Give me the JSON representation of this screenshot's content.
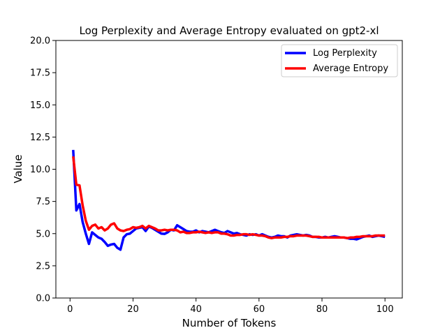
{
  "chart_data": {
    "type": "line",
    "title": "Log Perplexity and Average Entropy evaluated on gpt2-xl",
    "xlabel": "Number of Tokens",
    "ylabel": "Value",
    "xlim": [
      -4.5,
      105.5
    ],
    "ylim": [
      0,
      20
    ],
    "xticks": [
      0,
      20,
      40,
      60,
      80,
      100
    ],
    "yticks": [
      0.0,
      2.5,
      5.0,
      7.5,
      10.0,
      12.5,
      15.0,
      17.5,
      20.0
    ],
    "xtick_labels": [
      "0",
      "20",
      "40",
      "60",
      "80",
      "100"
    ],
    "ytick_labels": [
      "0.0",
      "2.5",
      "5.0",
      "7.5",
      "10.0",
      "12.5",
      "15.0",
      "17.5",
      "20.0"
    ],
    "grid": false,
    "legend_position": "top-right",
    "series": [
      {
        "name": "Log Perplexity",
        "color": "#0000ff",
        "x": [
          1,
          2,
          3,
          4,
          5,
          6,
          7,
          8,
          9,
          10,
          11,
          12,
          13,
          14,
          15,
          16,
          17,
          18,
          19,
          20,
          21,
          22,
          23,
          24,
          25,
          26,
          27,
          28,
          29,
          30,
          31,
          32,
          33,
          34,
          35,
          36,
          37,
          38,
          39,
          40,
          41,
          42,
          43,
          44,
          45,
          46,
          47,
          48,
          49,
          50,
          51,
          52,
          53,
          54,
          55,
          56,
          57,
          58,
          59,
          60,
          61,
          62,
          63,
          64,
          65,
          66,
          67,
          68,
          69,
          70,
          71,
          72,
          73,
          74,
          75,
          76,
          77,
          78,
          79,
          80,
          81,
          82,
          83,
          84,
          85,
          86,
          87,
          88,
          89,
          90,
          91,
          92,
          93,
          94,
          95,
          96,
          97,
          98,
          99,
          100
        ],
        "y": [
          11.5,
          6.8,
          7.3,
          5.9,
          5.0,
          4.2,
          5.1,
          4.9,
          4.7,
          4.6,
          4.35,
          4.05,
          4.15,
          4.2,
          3.9,
          3.75,
          4.7,
          4.95,
          5.0,
          5.2,
          5.4,
          5.45,
          5.5,
          5.2,
          5.55,
          5.45,
          5.3,
          5.15,
          5.0,
          4.98,
          5.1,
          5.3,
          5.25,
          5.65,
          5.5,
          5.35,
          5.2,
          5.15,
          5.15,
          5.25,
          5.1,
          5.2,
          5.15,
          5.1,
          5.2,
          5.3,
          5.2,
          5.1,
          5.05,
          5.2,
          5.1,
          5.0,
          5.05,
          4.95,
          4.9,
          4.85,
          4.95,
          4.9,
          4.95,
          4.85,
          4.95,
          4.85,
          4.75,
          4.7,
          4.75,
          4.85,
          4.8,
          4.8,
          4.7,
          4.85,
          4.9,
          4.95,
          4.9,
          4.85,
          4.9,
          4.85,
          4.75,
          4.75,
          4.7,
          4.7,
          4.75,
          4.7,
          4.75,
          4.8,
          4.75,
          4.7,
          4.7,
          4.65,
          4.6,
          4.6,
          4.55,
          4.65,
          4.75,
          4.8,
          4.85,
          4.75,
          4.8,
          4.85,
          4.8,
          4.75
        ]
      },
      {
        "name": "Average Entropy",
        "color": "#ff0000",
        "x": [
          1,
          2,
          3,
          4,
          5,
          6,
          7,
          8,
          9,
          10,
          11,
          12,
          13,
          14,
          15,
          16,
          17,
          18,
          19,
          20,
          21,
          22,
          23,
          24,
          25,
          26,
          27,
          28,
          29,
          30,
          31,
          32,
          33,
          34,
          35,
          36,
          37,
          38,
          39,
          40,
          41,
          42,
          43,
          44,
          45,
          46,
          47,
          48,
          49,
          50,
          51,
          52,
          53,
          54,
          55,
          56,
          57,
          58,
          59,
          60,
          61,
          62,
          63,
          64,
          65,
          66,
          67,
          68,
          69,
          70,
          71,
          72,
          73,
          74,
          75,
          76,
          77,
          78,
          79,
          80,
          81,
          82,
          83,
          84,
          85,
          86,
          87,
          88,
          89,
          90,
          91,
          92,
          93,
          94,
          95,
          96,
          97,
          98,
          99,
          100
        ],
        "y": [
          11.0,
          8.8,
          8.75,
          7.2,
          6.0,
          5.3,
          5.6,
          5.7,
          5.4,
          5.5,
          5.25,
          5.4,
          5.7,
          5.8,
          5.4,
          5.25,
          5.2,
          5.3,
          5.35,
          5.5,
          5.45,
          5.5,
          5.6,
          5.4,
          5.6,
          5.5,
          5.4,
          5.25,
          5.25,
          5.3,
          5.25,
          5.3,
          5.3,
          5.25,
          5.1,
          5.15,
          5.05,
          5.05,
          5.1,
          5.1,
          5.15,
          5.1,
          5.05,
          5.1,
          5.05,
          5.1,
          5.1,
          5.0,
          5.0,
          4.95,
          4.85,
          4.85,
          4.9,
          4.9,
          4.95,
          4.95,
          4.9,
          4.95,
          4.9,
          4.85,
          4.85,
          4.8,
          4.7,
          4.65,
          4.7,
          4.7,
          4.7,
          4.75,
          4.75,
          4.8,
          4.8,
          4.85,
          4.85,
          4.85,
          4.85,
          4.8,
          4.75,
          4.75,
          4.75,
          4.7,
          4.7,
          4.7,
          4.7,
          4.7,
          4.7,
          4.7,
          4.7,
          4.65,
          4.7,
          4.7,
          4.75,
          4.75,
          4.8,
          4.8,
          4.8,
          4.8,
          4.85,
          4.85,
          4.85,
          4.85
        ]
      }
    ]
  }
}
